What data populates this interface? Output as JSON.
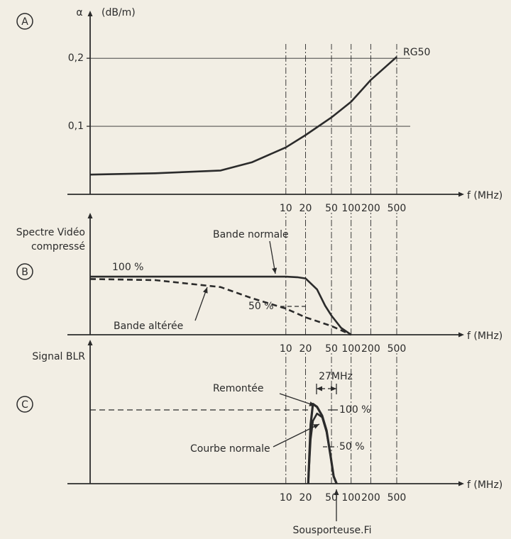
{
  "chart_data": [
    {
      "type": "line",
      "panel": "A",
      "ylabel": [
        "α",
        "(dB/m)"
      ],
      "xlabel": "f (MHz)",
      "xscale": "log",
      "xlim": [
        0.01,
        4000
      ],
      "xticks": [
        10,
        20,
        50,
        100,
        200,
        500
      ],
      "ylim": [
        0,
        0.27
      ],
      "yticks": [
        {
          "value": 0.1,
          "label": "0,1"
        },
        {
          "value": 0.2,
          "label": "0,2"
        }
      ],
      "grid": true,
      "series": [
        {
          "name": "RG50",
          "color": "#2b2b2b",
          "x": [
            0.01,
            0.1,
            1,
            3,
            10,
            20,
            50,
            100,
            200,
            500
          ],
          "values": [
            0.029,
            0.031,
            0.035,
            0.047,
            0.069,
            0.087,
            0.113,
            0.136,
            0.168,
            0.202
          ]
        }
      ]
    },
    {
      "type": "line",
      "panel": "B",
      "ylabel": [
        "Spectre Vidéo",
        "compressé"
      ],
      "xlabel": "f (MHz)",
      "xscale": "log",
      "xlim": [
        0.01,
        4000
      ],
      "xticks": [
        10,
        20,
        50,
        100,
        200,
        500
      ],
      "ylim": [
        0,
        210
      ],
      "grid": true,
      "annotations": [
        "100 %",
        "50 %"
      ],
      "series": [
        {
          "name": "Bande normale",
          "color": "#2b2b2b",
          "dash": false,
          "x": [
            0.01,
            1,
            10,
            15,
            20,
            30,
            40,
            50,
            70,
            100
          ],
          "values": [
            100,
            100,
            100,
            99,
            97,
            78,
            50,
            33,
            12,
            0
          ]
        },
        {
          "name": "Bande altérée",
          "color": "#2b2b2b",
          "dash": true,
          "x": [
            0.01,
            0.1,
            1,
            3,
            10,
            20,
            50,
            100
          ],
          "values": [
            96,
            94,
            82,
            63,
            45,
            30,
            15,
            0
          ]
        }
      ]
    },
    {
      "type": "line",
      "panel": "C",
      "ylabel": [
        "Signal BLR"
      ],
      "xlabel": "f (MHz)",
      "xscale": "log",
      "xlim": [
        0.01,
        4000
      ],
      "xticks": [
        10,
        20,
        50,
        100,
        200,
        500
      ],
      "ylim": [
        0,
        195
      ],
      "grid": true,
      "annotations": [
        "27MHz",
        "100 %",
        "50 %",
        "Sousporteuse.Fi"
      ],
      "series": [
        {
          "name": "Remontée",
          "color": "#2b2b2b",
          "dash": false,
          "x": [
            22,
            24,
            26,
            30,
            36,
            42,
            48,
            54,
            60
          ],
          "values": [
            0,
            80,
            108,
            104,
            92,
            72,
            40,
            10,
            0
          ]
        },
        {
          "name": "Courbe normale",
          "color": "#2b2b2b",
          "dash": false,
          "x": [
            22,
            24,
            26,
            30,
            36,
            42,
            48,
            54,
            60
          ],
          "values": [
            0,
            60,
            85,
            95,
            90,
            70,
            40,
            10,
            0
          ]
        }
      ]
    }
  ]
}
